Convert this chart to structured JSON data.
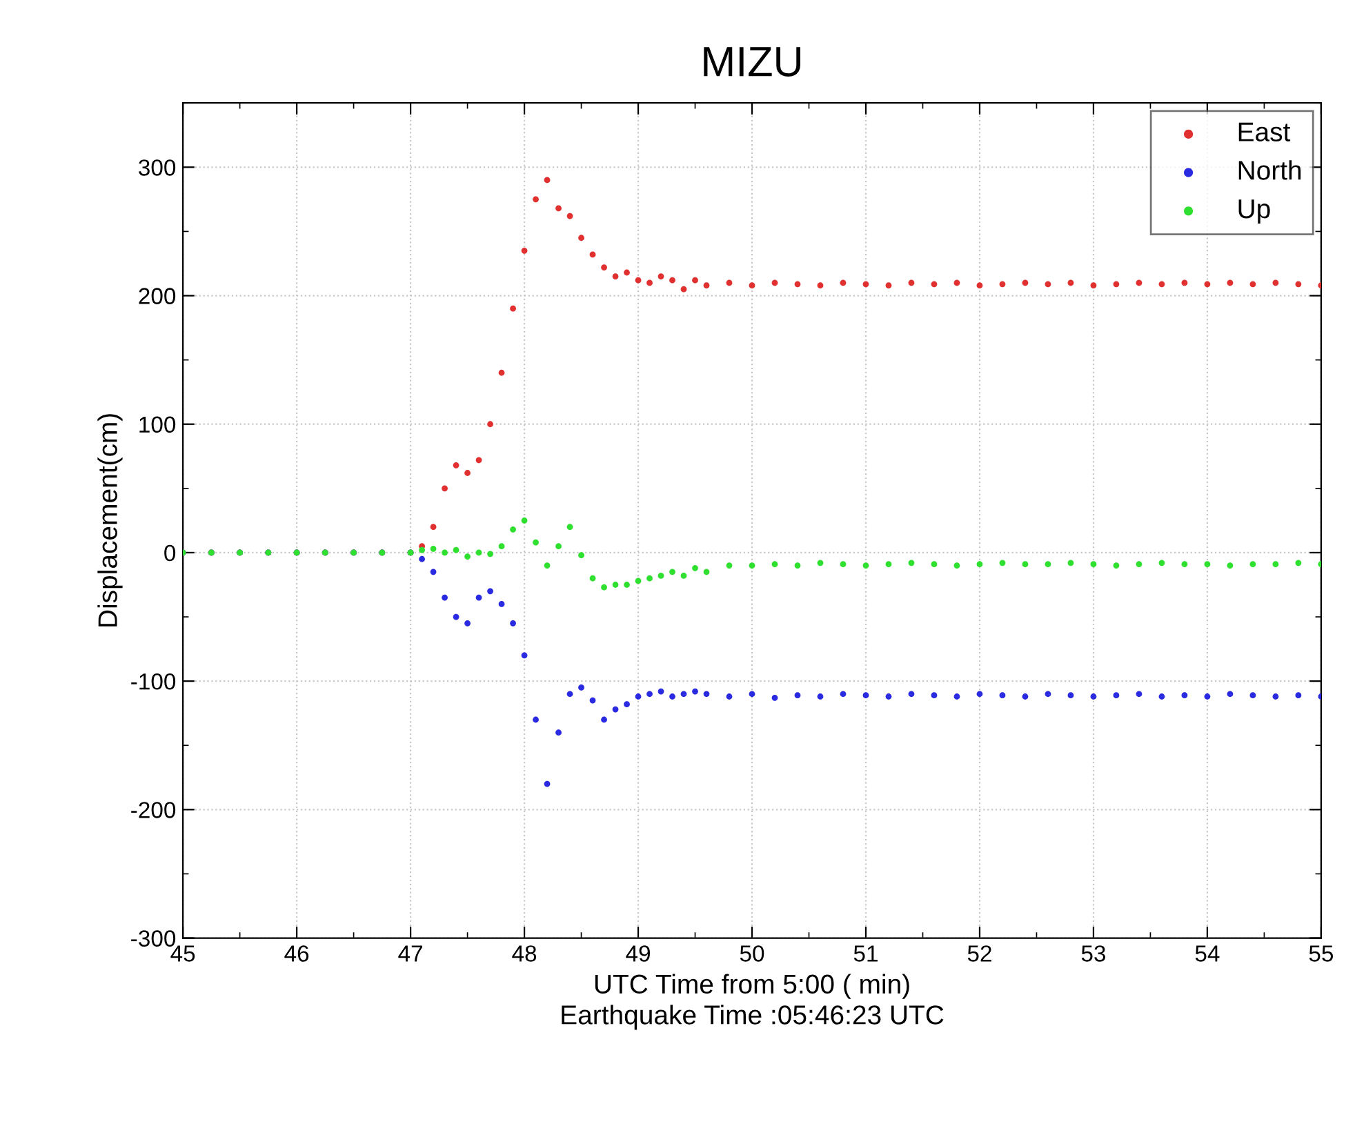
{
  "chart_data": {
    "type": "scatter",
    "title": "MIZU",
    "xlabel": "UTC Time from 5:00 ( min)\nEarthquake Time :05:46:23 UTC",
    "ylabel": "Displacement(cm)",
    "x": [
      45,
      45.25,
      45.5,
      45.75,
      46,
      46.25,
      46.5,
      46.75,
      47,
      47.1,
      47.2,
      47.3,
      47.4,
      47.5,
      47.6,
      47.7,
      47.8,
      47.9,
      48.0,
      48.1,
      48.2,
      48.3,
      48.4,
      48.5,
      48.6,
      48.7,
      48.8,
      48.9,
      49.0,
      49.1,
      49.2,
      49.3,
      49.4,
      49.5,
      49.6,
      49.8,
      50.0,
      50.2,
      50.4,
      50.6,
      50.8,
      51.0,
      51.2,
      51.4,
      51.6,
      51.8,
      52.0,
      52.2,
      52.4,
      52.6,
      52.8,
      53.0,
      53.2,
      53.4,
      53.6,
      53.8,
      54.0,
      54.2,
      54.4,
      54.6,
      54.8,
      55.0
    ],
    "series": [
      {
        "name": "East",
        "color": "#e03030",
        "values": [
          0,
          0,
          0,
          0,
          0,
          0,
          0,
          0,
          0,
          5,
          20,
          50,
          68,
          62,
          72,
          100,
          140,
          190,
          235,
          275,
          290,
          268,
          262,
          245,
          232,
          222,
          215,
          218,
          212,
          210,
          215,
          212,
          205,
          212,
          208,
          210,
          208,
          210,
          209,
          208,
          210,
          209,
          208,
          210,
          209,
          210,
          208,
          209,
          210,
          209,
          210,
          208,
          209,
          210,
          209,
          210,
          209,
          210,
          209,
          210,
          209,
          208
        ]
      },
      {
        "name": "North",
        "color": "#2a2ae0",
        "values": [
          0,
          0,
          0,
          0,
          0,
          0,
          0,
          0,
          0,
          -5,
          -15,
          -35,
          -50,
          -55,
          -35,
          -30,
          -40,
          -55,
          -80,
          -130,
          -180,
          -140,
          -110,
          -105,
          -115,
          -130,
          -122,
          -118,
          -112,
          -110,
          -108,
          -112,
          -110,
          -108,
          -110,
          -112,
          -110,
          -113,
          -111,
          -112,
          -110,
          -111,
          -112,
          -110,
          -111,
          -112,
          -110,
          -111,
          -112,
          -110,
          -111,
          -112,
          -111,
          -110,
          -112,
          -111,
          -112,
          -110,
          -111,
          -112,
          -111,
          -112
        ]
      },
      {
        "name": "Up",
        "color": "#30e030",
        "values": [
          0,
          0,
          0,
          0,
          0,
          0,
          0,
          0,
          0,
          2,
          3,
          0,
          2,
          -3,
          0,
          -1,
          5,
          18,
          25,
          8,
          -10,
          5,
          20,
          -2,
          -20,
          -27,
          -25,
          -25,
          -22,
          -20,
          -18,
          -15,
          -18,
          -12,
          -15,
          -10,
          -10,
          -9,
          -10,
          -8,
          -9,
          -10,
          -9,
          -8,
          -9,
          -10,
          -9,
          -8,
          -9,
          -9,
          -8,
          -9,
          -10,
          -9,
          -8,
          -9,
          -9,
          -10,
          -9,
          -9,
          -8,
          -9
        ]
      }
    ],
    "xlim": [
      45,
      55
    ],
    "xticks": [
      45,
      46,
      47,
      48,
      49,
      50,
      51,
      52,
      53,
      54,
      55
    ],
    "ylim": [
      -300,
      350
    ],
    "yticks": [
      -300,
      -200,
      -100,
      0,
      100,
      200,
      300
    ],
    "grid": true,
    "legend": "top right",
    "marker": "circle"
  }
}
